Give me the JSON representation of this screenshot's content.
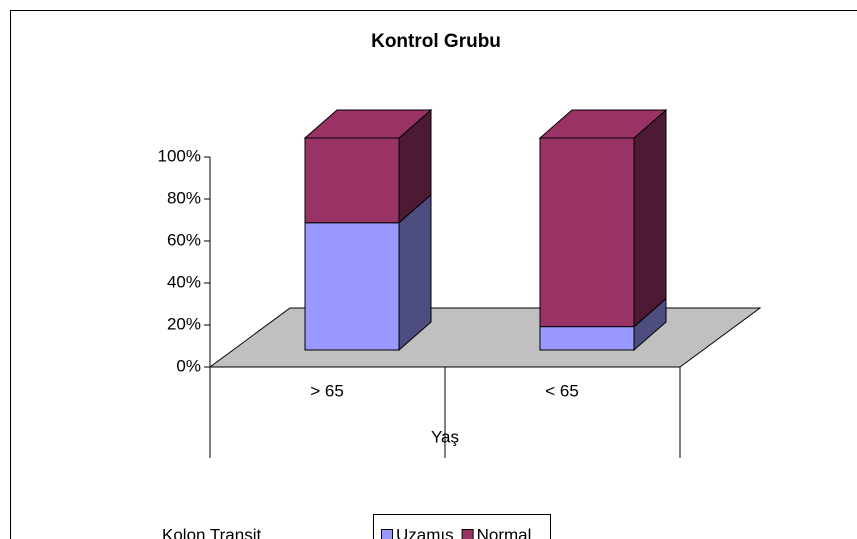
{
  "chart_data": {
    "type": "bar3d_stacked",
    "title": "Kontrol Grubu",
    "x_label": "Yaş",
    "legend_title": "Kolon Transit",
    "categories": [
      "> 65",
      "< 65"
    ],
    "series": [
      {
        "name": "Uzamış",
        "color": "#9999ff",
        "values": [
          60,
          11
        ]
      },
      {
        "name": "Normal",
        "color": "#993366",
        "values": [
          40,
          89
        ]
      }
    ],
    "ylim": [
      0,
      100
    ],
    "yticks": [
      {
        "value": 0,
        "label": "0%"
      },
      {
        "value": 20,
        "label": "20%"
      },
      {
        "value": 40,
        "label": "40%"
      },
      {
        "value": 60,
        "label": "60%"
      },
      {
        "value": 80,
        "label": "80%"
      },
      {
        "value": 100,
        "label": "100%"
      }
    ],
    "legend": "bottom"
  }
}
